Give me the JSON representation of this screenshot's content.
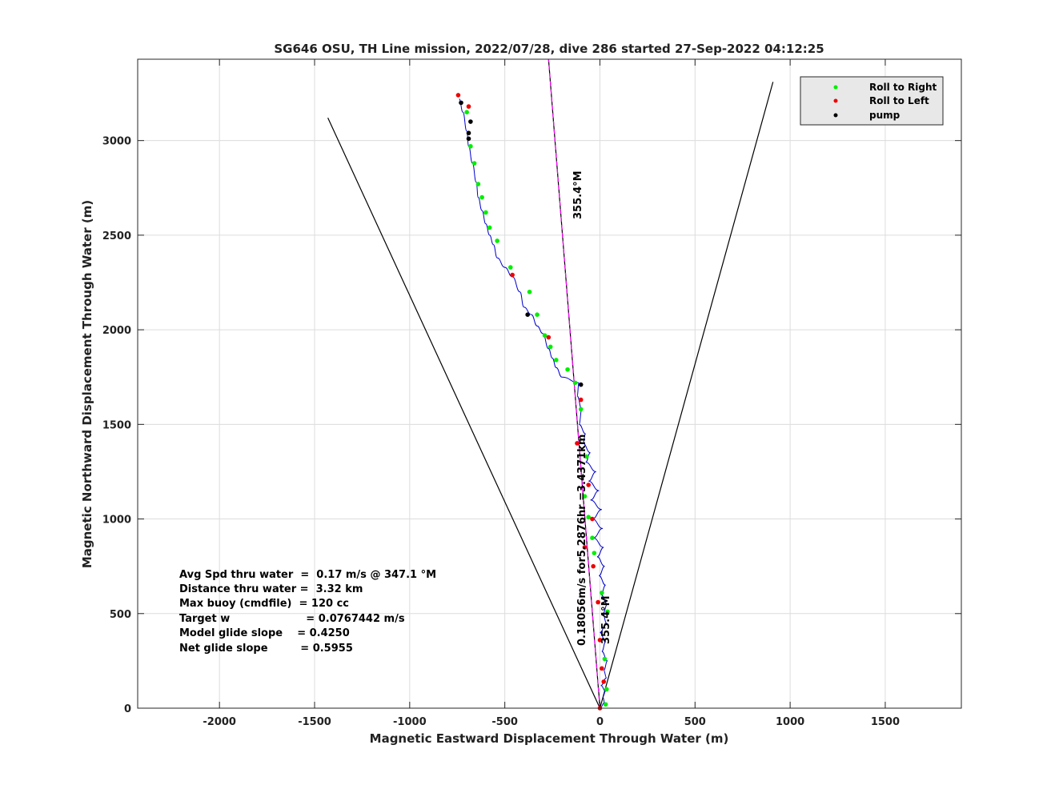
{
  "chart_data": {
    "type": "line",
    "title": "SG646 OSU, TH Line mission, 2022/07/28, dive 286 started 27-Sep-2022 04:12:25",
    "xlabel": "Magnetic Eastward Displacement Through Water (m)",
    "ylabel": "Magnetic Northward Displacement Through Water (m)",
    "xlim": [
      -2430,
      1900
    ],
    "ylim": [
      0,
      3430
    ],
    "xticks": [
      -2000,
      -1500,
      -1000,
      -500,
      0,
      500,
      1000,
      1500
    ],
    "yticks": [
      0,
      500,
      1000,
      1500,
      2000,
      2500,
      3000
    ],
    "grid": true,
    "legend_position": "top-right",
    "legend": [
      {
        "label": "Roll to Right",
        "color": "#00ee00"
      },
      {
        "label": "Roll to Left",
        "color": "#ee0000"
      },
      {
        "label": "pump",
        "color": "#000000"
      }
    ],
    "annotations": {
      "lines": [
        "Avg Spd thru water  =  0.17 m/s @ 347.1 °M",
        "Distance thru water =  3.32 km",
        "Max buoy (cmdfile)  = 120 cc",
        "Target w                     = 0.0767442 m/s",
        "Model glide slope    = 0.4250",
        "Net glide slope         = 0.5955"
      ],
      "heading_top": "355.4°M",
      "heading_bottom": "355.4°M",
      "current_label": "0.18056m/s for5.2876hr =3.4371km"
    },
    "series": [
      {
        "kind": "track",
        "color": "#0000cc",
        "x": [
          0,
          25,
          15,
          30,
          5,
          35,
          20,
          40,
          10,
          30,
          0,
          35,
          15,
          40,
          5,
          30,
          -5,
          25,
          -15,
          20,
          -35,
          15,
          -40,
          10,
          -50,
          -5,
          -60,
          -20,
          -75,
          -50,
          -90,
          -75,
          -110,
          -95,
          -120,
          -110,
          -200,
          -230,
          -250,
          -270,
          -300,
          -330,
          -360,
          -400,
          -420,
          -460,
          -500,
          -540,
          -560,
          -580,
          -600,
          -620,
          -640,
          -650,
          -670,
          -690,
          -700,
          -720,
          -740
        ],
        "y": [
          0,
          30,
          60,
          90,
          120,
          160,
          200,
          250,
          300,
          350,
          400,
          450,
          500,
          550,
          600,
          650,
          700,
          750,
          800,
          850,
          900,
          950,
          1000,
          1050,
          1100,
          1150,
          1200,
          1250,
          1300,
          1350,
          1400,
          1450,
          1500,
          1580,
          1650,
          1720,
          1750,
          1800,
          1850,
          1900,
          1980,
          2020,
          2080,
          2120,
          2200,
          2280,
          2330,
          2380,
          2450,
          2500,
          2560,
          2630,
          2700,
          2780,
          2880,
          2970,
          3050,
          3150,
          3220
        ]
      },
      {
        "kind": "roll-right",
        "color": "#00ee00",
        "x": [
          30,
          35,
          25,
          40,
          10,
          -30,
          -40,
          -60,
          -80,
          -70,
          -100,
          -130,
          -170,
          -230,
          -260,
          -290,
          -330,
          -370,
          -470,
          -540,
          -580,
          -600,
          -620,
          -640,
          -660,
          -680,
          -700
        ],
        "y": [
          20,
          100,
          260,
          510,
          610,
          820,
          900,
          1010,
          1120,
          1330,
          1580,
          1720,
          1790,
          1840,
          1910,
          1970,
          2080,
          2200,
          2330,
          2470,
          2540,
          2620,
          2700,
          2770,
          2880,
          2970,
          3150
        ]
      },
      {
        "kind": "roll-left",
        "color": "#ee0000",
        "x": [
          0,
          20,
          10,
          0,
          -10,
          -35,
          -80,
          -40,
          -60,
          -120,
          -100,
          -270,
          -460,
          -690,
          -745
        ],
        "y": [
          0,
          140,
          210,
          360,
          560,
          750,
          850,
          1000,
          1180,
          1400,
          1630,
          1960,
          2290,
          3180,
          3240
        ],
        "note": "sample points along track"
      },
      {
        "kind": "pump",
        "color": "#000000",
        "x": [
          -100,
          -380,
          -690,
          -680,
          -690,
          -730
        ],
        "y": [
          1710,
          2080,
          3010,
          3100,
          3040,
          3200
        ]
      },
      {
        "kind": "wedge-left",
        "color": "#000000",
        "x": [
          0,
          -1430
        ],
        "y": [
          0,
          3120
        ]
      },
      {
        "kind": "wedge-right",
        "color": "#000000",
        "x": [
          0,
          910
        ],
        "y": [
          0,
          3310
        ]
      },
      {
        "kind": "heading",
        "color": "#ff00ff",
        "x": [
          0,
          -270
        ],
        "y": [
          0,
          3430
        ]
      },
      {
        "kind": "current",
        "color": "#000000",
        "x": [
          0,
          -270
        ],
        "y": [
          0,
          3430
        ]
      }
    ]
  }
}
